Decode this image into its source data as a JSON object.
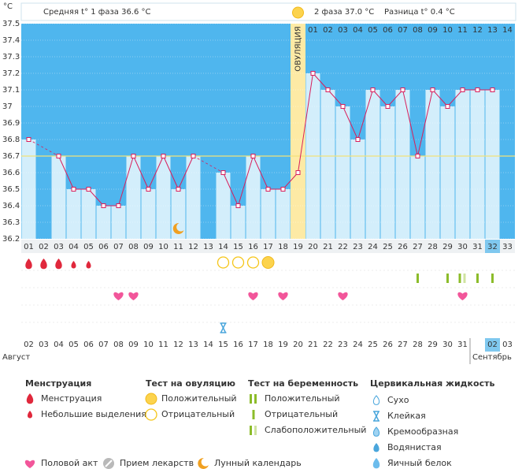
{
  "chart_data": {
    "type": "bbt",
    "y_unit": "°C",
    "header": {
      "phase1": "Средняя t° 1 фаза 36.6 °C",
      "phase2": "2 фаза 37.0 °C",
      "difference": "Разница t° 0.4 °C"
    },
    "categories": [
      "01",
      "02",
      "03",
      "04",
      "05",
      "06",
      "07",
      "08",
      "09",
      "10",
      "11",
      "12",
      "13",
      "14",
      "15",
      "16",
      "17",
      "18",
      "19",
      "20",
      "21",
      "22",
      "23",
      "24",
      "25",
      "26",
      "27",
      "28",
      "29",
      "30",
      "31",
      "32",
      "33"
    ],
    "values": [
      36.8,
      null,
      36.7,
      36.5,
      36.5,
      36.4,
      36.4,
      36.7,
      36.5,
      36.7,
      36.5,
      36.7,
      null,
      36.6,
      36.4,
      36.7,
      36.5,
      36.5,
      36.6,
      37.2,
      37.1,
      37.0,
      36.8,
      37.1,
      37.0,
      37.1,
      36.7,
      37.1,
      37.0,
      37.1,
      37.1,
      37.1,
      null
    ],
    "ylim": [
      36.2,
      37.5
    ],
    "yticks": [
      36.2,
      36.3,
      36.4,
      36.5,
      36.6,
      36.7,
      36.8,
      36.9,
      37,
      37.1,
      37.2,
      37.3,
      37.4,
      37.5
    ],
    "grid": true,
    "cover_line": 36.7,
    "ovulation_day": "19",
    "ovulation_label": "ОВУЛЯЦИЯ",
    "phase2_days": [
      "01",
      "02",
      "03",
      "04",
      "05",
      "06",
      "07",
      "08",
      "09",
      "10",
      "11",
      "12",
      "13",
      "14"
    ],
    "today": "32",
    "colors": {
      "background": "#4fb6ee",
      "bar": "#d3eefb",
      "ovulation": "#fdeaa5",
      "line": "#d81e5b",
      "cover_line": "#f1e27a",
      "today": "#7fc8ef"
    },
    "menstruation_heavy": [
      "01",
      "02",
      "03"
    ],
    "menstruation_light": [
      "04",
      "05"
    ],
    "ovulation_test_positive": [
      "17"
    ],
    "ovulation_test_negative": [
      "14",
      "15",
      "16"
    ],
    "pregnancy_test_negative": [
      "27",
      "29",
      "31",
      "32"
    ],
    "pregnancy_test_weak": [
      "30"
    ],
    "intercourse": [
      "07",
      "08",
      "16",
      "18",
      "22",
      "30"
    ],
    "cervical_sticky": [
      "14"
    ],
    "lunar": [
      "11"
    ],
    "dates": [
      "02",
      "03",
      "04",
      "05",
      "06",
      "07",
      "08",
      "09",
      "10",
      "11",
      "12",
      "13",
      "14",
      "15",
      "16",
      "17",
      "18",
      "19",
      "20",
      "21",
      "22",
      "23",
      "24",
      "25",
      "26",
      "27",
      "28",
      "29",
      "30",
      "31",
      null,
      "02",
      "03"
    ],
    "date_weekend": [
      true,
      true,
      false,
      false,
      false,
      false,
      false,
      true,
      true,
      false,
      false,
      false,
      false,
      false,
      true,
      true,
      false,
      false,
      false,
      false,
      false,
      true,
      true,
      false,
      false,
      false,
      false,
      false,
      true,
      true,
      false,
      false,
      false
    ],
    "weekend_color": "#e0245e",
    "months": [
      {
        "label": "Август",
        "start": "01"
      },
      {
        "label": "Сентябрь",
        "start": "31"
      }
    ],
    "legend": [
      {
        "title": "Менструация",
        "items": [
          "Менструация",
          "Небольшие выделения"
        ]
      },
      {
        "title": "Тест на овуляцию",
        "items": [
          "Положительный",
          "Отрицательный"
        ]
      },
      {
        "title": "Тест на беременность",
        "items": [
          "Положительный",
          "Отрицательный",
          "Слабоположительный"
        ]
      },
      {
        "title": "Цервикальная жидкость",
        "items": [
          "Сухо",
          "Клейкая",
          "Кремообразная",
          "Водянистая",
          "Яичный белок"
        ]
      }
    ],
    "legend_extra": [
      "Половой акт",
      "Прием лекарств",
      "Лунный календарь"
    ]
  }
}
